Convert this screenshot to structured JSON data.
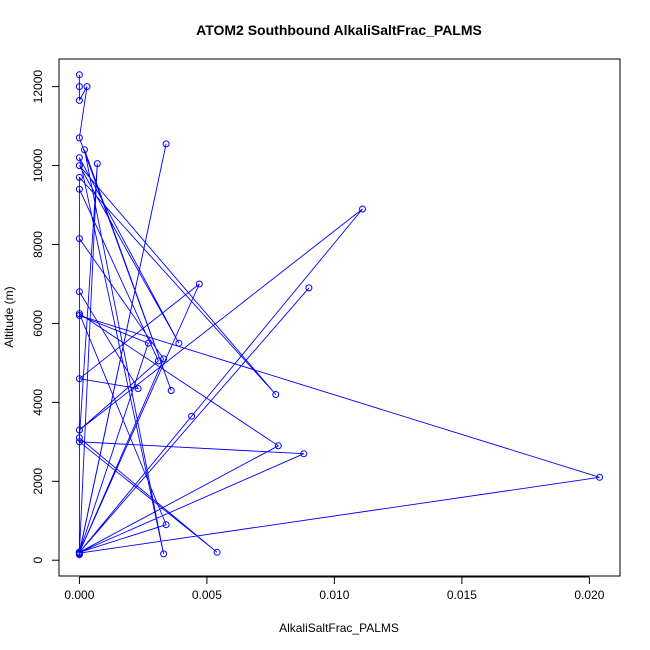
{
  "chart_data": {
    "type": "line",
    "title": "ATOM2 Southbound AlkaliSaltFrac_PALMS",
    "xlabel": "AlkaliSaltFrac_PALMS",
    "ylabel": "Altitude (m)",
    "xlim": [
      -0.0008,
      0.0212
    ],
    "ylim": [
      -400,
      12700
    ],
    "x_ticks": [
      0,
      0.005,
      0.01,
      0.015,
      0.02
    ],
    "x_tick_labels": [
      "0.000",
      "0.005",
      "0.010",
      "0.015",
      "0.020"
    ],
    "y_ticks": [
      0,
      2000,
      4000,
      6000,
      8000,
      10000,
      12000
    ],
    "y_tick_labels": [
      "0",
      "2000",
      "4000",
      "6000",
      "8000",
      "10000",
      "12000"
    ],
    "grid": false,
    "legend": "none",
    "series": [
      {
        "color": "#0000FF",
        "marker": "open-circle",
        "x": [
          0,
          0,
          0,
          0.0003,
          0,
          0.0036,
          0.0002,
          0.0033,
          0,
          0.0039,
          0,
          0.0077,
          0,
          0,
          0.0023,
          0,
          0.0047,
          0,
          0.0027,
          0,
          0.0204,
          0,
          0.0034,
          0,
          0,
          0.0031,
          0,
          0.0111,
          0,
          0.0034,
          0,
          0.0078,
          0,
          0.009,
          0,
          0.0044,
          0,
          0.0088,
          0,
          0.0054,
          0,
          0.0007,
          0,
          0,
          0.0033,
          0,
          0
        ],
        "y": [
          12300,
          12000,
          11650,
          12000,
          10700,
          4300,
          10400,
          160,
          10200,
          5500,
          10000,
          4200,
          9700,
          6800,
          4350,
          4600,
          7000,
          200,
          5500,
          6200,
          2100,
          180,
          10550,
          200,
          9400,
          5050,
          3300,
          8900,
          200,
          900,
          6250,
          2900,
          200,
          6900,
          200,
          3650,
          200,
          2700,
          3000,
          200,
          3100,
          10050,
          160,
          200,
          5100,
          8150,
          140
        ]
      }
    ]
  }
}
